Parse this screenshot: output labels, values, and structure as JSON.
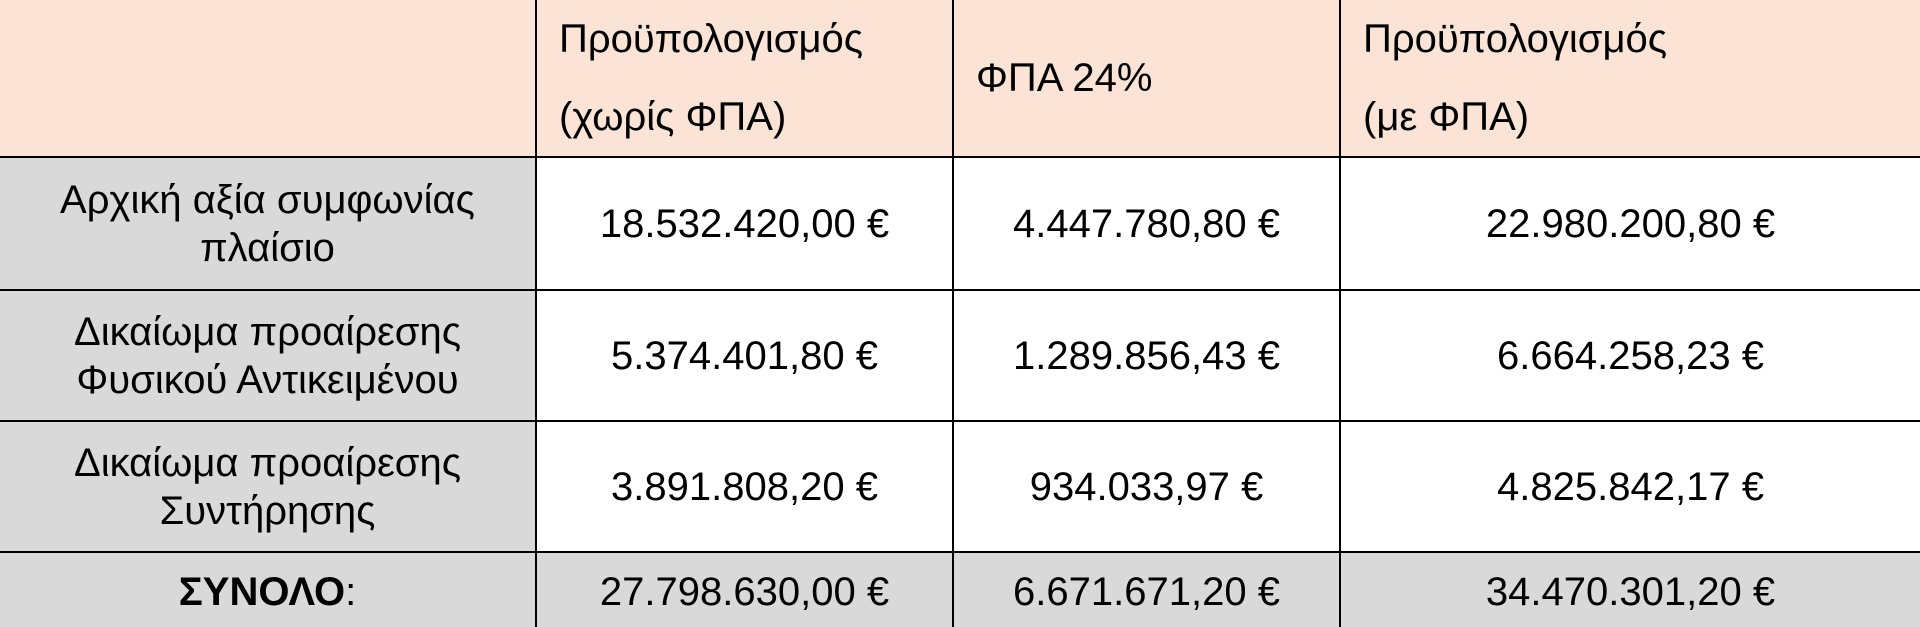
{
  "table": {
    "header": [
      [],
      [
        "Προϋπολογισμός",
        "(χωρίς ΦΠΑ)"
      ],
      [
        "ΦΠΑ 24%"
      ],
      [
        "Προϋπολογισμός",
        "(με ΦΠΑ)"
      ]
    ],
    "rows": [
      {
        "label": [
          "Αρχική αξία συμφωνίας",
          "πλαίσιο"
        ],
        "cells": [
          "18.532.420,00 €",
          "4.447.780,80 €",
          "22.980.200,80 €"
        ]
      },
      {
        "label": [
          "Δικαίωμα προαίρεσης",
          "Φυσικού Αντικειμένου"
        ],
        "cells": [
          "5.374.401,80 €",
          "1.289.856,43 €",
          "6.664.258,23 €"
        ]
      },
      {
        "label": [
          "Δικαίωμα προαίρεσης",
          "Συντήρησης"
        ],
        "cells": [
          "3.891.808,20 €",
          "934.033,97 €",
          "4.825.842,17 €"
        ]
      }
    ],
    "total": {
      "label": "ΣΥΝΟΛΟ",
      "suffix": ":",
      "cells": [
        "27.798.630,00 €",
        "6.671.671,20 €",
        "34.470.301,20 €"
      ]
    }
  }
}
